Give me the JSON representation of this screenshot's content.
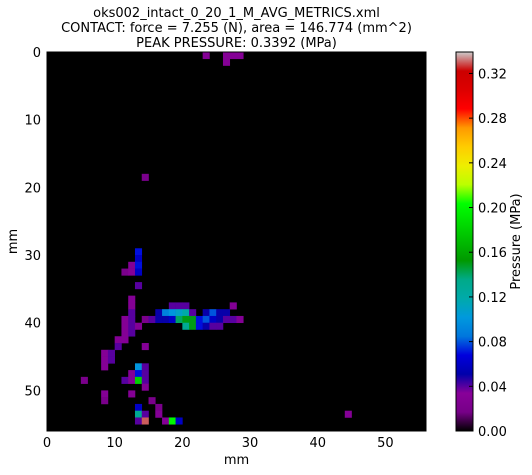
{
  "title": {
    "line1": "oks002_intact_0_20_1_M_AVG_METRICS.xml",
    "line2": "CONTACT: force = 7.255 (N), area = 146.774 (mm^2)",
    "line3": "PEAK PRESSURE: 0.3392 (MPa)"
  },
  "chart_data": {
    "type": "heatmap",
    "xlabel": "mm",
    "ylabel": "mm",
    "xlim": [
      0,
      56
    ],
    "ylim": [
      56,
      0
    ],
    "xticks": [
      0,
      10,
      20,
      30,
      40,
      50
    ],
    "yticks": [
      0,
      10,
      20,
      30,
      40,
      50
    ],
    "background_value": 0,
    "colorbar": {
      "label": "Pressure (MPa)",
      "range": [
        0,
        0.3392
      ],
      "ticks": [
        "0.00",
        "0.04",
        "0.08",
        "0.12",
        "0.16",
        "0.20",
        "0.24",
        "0.28",
        "0.32"
      ],
      "colormap": "nipy_spectral"
    },
    "cells": [
      [
        23,
        0,
        0.03
      ],
      [
        26,
        0,
        0.03
      ],
      [
        27,
        0,
        0.03
      ],
      [
        28,
        0,
        0.03
      ],
      [
        26,
        1,
        0.03
      ],
      [
        14,
        18,
        0.02
      ],
      [
        13,
        29,
        0.07
      ],
      [
        13,
        30,
        0.06
      ],
      [
        12,
        31,
        0.03
      ],
      [
        13,
        31,
        0.07
      ],
      [
        11,
        32,
        0.02
      ],
      [
        12,
        32,
        0.03
      ],
      [
        13,
        32,
        0.06
      ],
      [
        13,
        34,
        0.04
      ],
      [
        12,
        36,
        0.03
      ],
      [
        12,
        37,
        0.03
      ],
      [
        18,
        37,
        0.04
      ],
      [
        19,
        37,
        0.04
      ],
      [
        20,
        37,
        0.04
      ],
      [
        27,
        37,
        0.03
      ],
      [
        12,
        38,
        0.04
      ],
      [
        16,
        38,
        0.05
      ],
      [
        17,
        38,
        0.09
      ],
      [
        18,
        38,
        0.1
      ],
      [
        19,
        38,
        0.11
      ],
      [
        20,
        38,
        0.12
      ],
      [
        21,
        38,
        0.04
      ],
      [
        23,
        38,
        0.05
      ],
      [
        24,
        38,
        0.08
      ],
      [
        25,
        38,
        0.05
      ],
      [
        26,
        38,
        0.05
      ],
      [
        11,
        39,
        0.03
      ],
      [
        12,
        39,
        0.04
      ],
      [
        14,
        39,
        0.02
      ],
      [
        15,
        39,
        0.04
      ],
      [
        16,
        39,
        0.05
      ],
      [
        17,
        39,
        0.05
      ],
      [
        18,
        39,
        0.06
      ],
      [
        19,
        39,
        0.14
      ],
      [
        20,
        39,
        0.15
      ],
      [
        21,
        39,
        0.15
      ],
      [
        22,
        39,
        0.07
      ],
      [
        23,
        39,
        0.08
      ],
      [
        24,
        39,
        0.06
      ],
      [
        25,
        39,
        0.05
      ],
      [
        26,
        39,
        0.04
      ],
      [
        27,
        39,
        0.04
      ],
      [
        28,
        39,
        0.03
      ],
      [
        11,
        40,
        0.03
      ],
      [
        12,
        40,
        0.04
      ],
      [
        13,
        40,
        0.03
      ],
      [
        20,
        40,
        0.13
      ],
      [
        21,
        40,
        0.15
      ],
      [
        22,
        40,
        0.07
      ],
      [
        23,
        40,
        0.05
      ],
      [
        24,
        40,
        0.04
      ],
      [
        25,
        40,
        0.04
      ],
      [
        11,
        41,
        0.03
      ],
      [
        12,
        41,
        0.04
      ],
      [
        10,
        42,
        0.03
      ],
      [
        11,
        42,
        0.03
      ],
      [
        10,
        43,
        0.04
      ],
      [
        14,
        43,
        0.03
      ],
      [
        8,
        44,
        0.03
      ],
      [
        9,
        44,
        0.04
      ],
      [
        8,
        45,
        0.03
      ],
      [
        9,
        45,
        0.04
      ],
      [
        8,
        46,
        0.03
      ],
      [
        13,
        46,
        0.1
      ],
      [
        14,
        46,
        0.04
      ],
      [
        12,
        47,
        0.03
      ],
      [
        13,
        47,
        0.07
      ],
      [
        14,
        47,
        0.04
      ],
      [
        5,
        48,
        0.02
      ],
      [
        11,
        48,
        0.04
      ],
      [
        12,
        48,
        0.03
      ],
      [
        13,
        48,
        0.18
      ],
      [
        14,
        48,
        0.04
      ],
      [
        14,
        49,
        0.03
      ],
      [
        8,
        50,
        0.03
      ],
      [
        12,
        50,
        0.03
      ],
      [
        8,
        51,
        0.02
      ],
      [
        15,
        51,
        0.02
      ],
      [
        13,
        52,
        0.06
      ],
      [
        16,
        52,
        0.02
      ],
      [
        13,
        53,
        0.13
      ],
      [
        14,
        53,
        0.04
      ],
      [
        16,
        53,
        0.03
      ],
      [
        44,
        53,
        0.03
      ],
      [
        13,
        54,
        0.04
      ],
      [
        14,
        54,
        0.33
      ],
      [
        17,
        54,
        0.03
      ],
      [
        18,
        54,
        0.2
      ],
      [
        19,
        54,
        0.06
      ]
    ]
  }
}
